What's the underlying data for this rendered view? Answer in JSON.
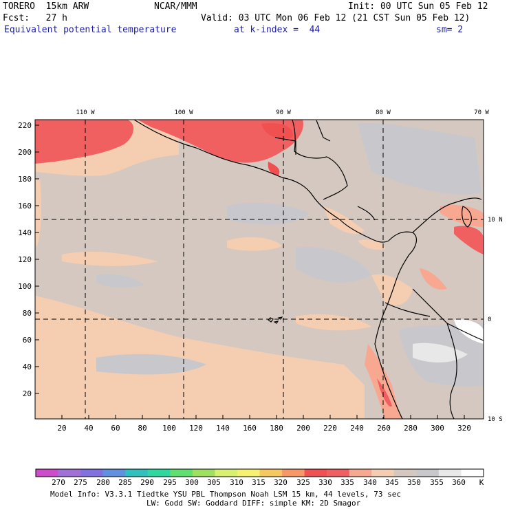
{
  "header": {
    "model": "TORERO  15km ARW",
    "center": "NCAR/MMM",
    "init": "Init: 00 UTC Sun 05 Feb 12",
    "fcst": "Fcst:   27 h",
    "valid": "Valid: 03 UTC Mon 06 Feb 12 (21 CST Sun 05 Feb 12)",
    "field": "Equivalent potential temperature",
    "level": "at k-index =  44",
    "smooth": "sm= 2"
  },
  "map": {
    "x_ticks": [
      "20",
      "40",
      "60",
      "80",
      "100",
      "120",
      "140",
      "160",
      "180",
      "200",
      "220",
      "240",
      "260",
      "280",
      "300",
      "320"
    ],
    "y_ticks": [
      "20",
      "40",
      "60",
      "80",
      "100",
      "120",
      "140",
      "160",
      "180",
      "200",
      "220"
    ],
    "lon_labels": [
      "110 W",
      "100 W",
      "90 W",
      "80 W",
      "70 W"
    ],
    "lat_labels": [
      "10 N",
      "0",
      "10 S"
    ]
  },
  "colorbar": {
    "labels": [
      "270",
      "275",
      "280",
      "285",
      "290",
      "295",
      "300",
      "305",
      "310",
      "315",
      "320",
      "325",
      "330",
      "335",
      "340",
      "345",
      "350",
      "355",
      "360"
    ],
    "unit": "K",
    "colors": [
      "#cc4ccc",
      "#a070d8",
      "#8070e0",
      "#6090e0",
      "#30c0c0",
      "#30d8a0",
      "#60e070",
      "#a0e060",
      "#d8f070",
      "#f8f070",
      "#f8c860",
      "#f89868",
      "#f05050",
      "#f06060",
      "#f8a890",
      "#f5cdb0",
      "#d4c8c0",
      "#c8c8cc",
      "#e8e8e8",
      "#ffffff"
    ]
  },
  "footer": {
    "line1": "Model Info: V3.3.1    Tiedtke YSU PBL  Thompson    Noah LSM  15 km,   44 levels,   73 sec",
    "line2": "LW: Godd SW: Goddard DIFF: simple KM: 2D Smagor"
  }
}
